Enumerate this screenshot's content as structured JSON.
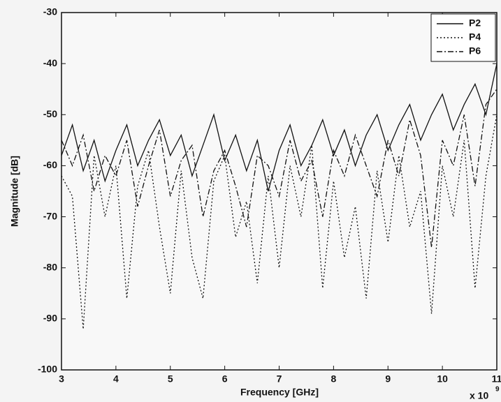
{
  "chart_data": {
    "type": "line",
    "x_label": "Frequency [GHz]",
    "y_label": "Magnitude [dB]",
    "x_scale_base": "x 10",
    "x_scale_exponent": "9",
    "x": [
      3,
      3.2,
      3.4,
      3.6,
      3.8,
      4,
      4.2,
      4.4,
      4.6,
      4.8,
      5,
      5.2,
      5.4,
      5.6,
      5.8,
      6,
      6.2,
      6.4,
      6.6,
      6.8,
      7,
      7.2,
      7.4,
      7.6,
      7.8,
      8,
      8.2,
      8.4,
      8.6,
      8.8,
      9,
      9.2,
      9.4,
      9.6,
      9.8,
      10,
      10.2,
      10.4,
      10.6,
      10.8,
      11
    ],
    "series": [
      {
        "name": "P2",
        "color": "#111111",
        "style": "solid",
        "values": [
          -58,
          -52,
          -61,
          -55,
          -63,
          -57,
          -52,
          -60,
          -55,
          -51,
          -58,
          -54,
          -62,
          -56,
          -50,
          -59,
          -54,
          -61,
          -55,
          -65,
          -57,
          -52,
          -60,
          -56,
          -51,
          -58,
          -53,
          -60,
          -54,
          -50,
          -57,
          -52,
          -48,
          -55,
          -50,
          -46,
          -53,
          -48,
          -44,
          -50,
          -40
        ]
      },
      {
        "name": "P4",
        "color": "#111111",
        "style": "dotted",
        "values": [
          -62,
          -66,
          -92,
          -58,
          -70,
          -60,
          -86,
          -64,
          -57,
          -72,
          -85,
          -61,
          -78,
          -86,
          -63,
          -58,
          -74,
          -67,
          -83,
          -62,
          -80,
          -60,
          -70,
          -56,
          -84,
          -63,
          -78,
          -68,
          -86,
          -61,
          -75,
          -58,
          -72,
          -65,
          -89,
          -60,
          -70,
          -55,
          -84,
          -62,
          -50
        ]
      },
      {
        "name": "P6",
        "color": "#111111",
        "style": "dashdot",
        "values": [
          -55,
          -60,
          -54,
          -65,
          -58,
          -62,
          -55,
          -68,
          -60,
          -53,
          -66,
          -59,
          -56,
          -70,
          -61,
          -57,
          -64,
          -72,
          -58,
          -60,
          -66,
          -55,
          -63,
          -59,
          -70,
          -57,
          -62,
          -54,
          -60,
          -66,
          -55,
          -62,
          -51,
          -58,
          -76,
          -55,
          -60,
          -50,
          -64,
          -48,
          -45
        ]
      }
    ],
    "xlim": [
      3,
      11
    ],
    "xticks": [
      3,
      4,
      5,
      6,
      7,
      8,
      9,
      10,
      11
    ],
    "ylim": [
      -100,
      -30
    ],
    "yticks": [
      -100,
      -90,
      -80,
      -70,
      -60,
      -50,
      -40,
      -30
    ],
    "grid": false,
    "legend": "upper right"
  }
}
